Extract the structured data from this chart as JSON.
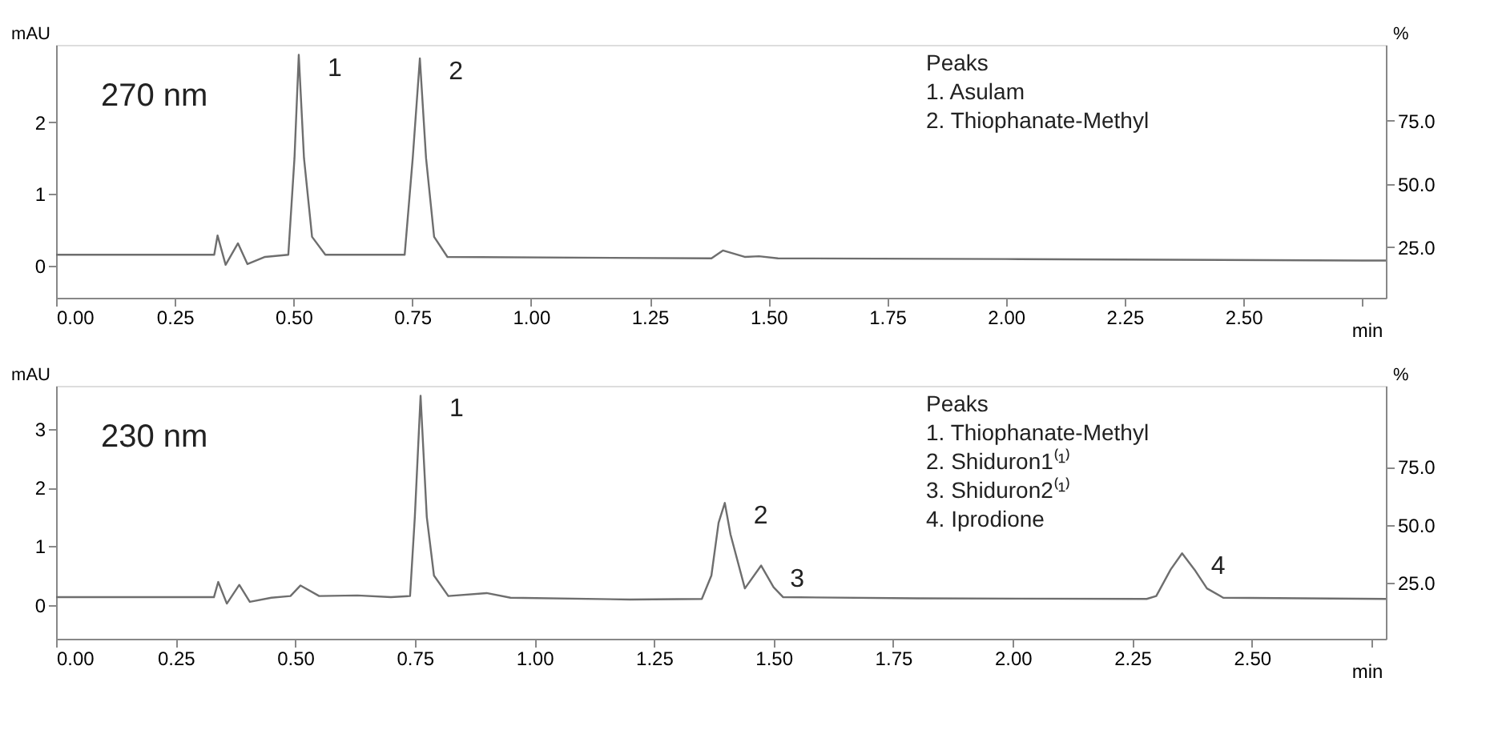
{
  "chart_data": [
    {
      "type": "line",
      "xlabel": "min",
      "ylabel": "mAU",
      "y2label": "%",
      "xlim": [
        0,
        2.8
      ],
      "ylim": [
        -0.45,
        3.08
      ],
      "y2lim": [
        5,
        105
      ],
      "xticks": [
        {
          "value": 0,
          "label": "0.00"
        },
        0.25,
        {
          "value": 0.5,
          "label": "0.50"
        },
        0.75,
        {
          "value": 1,
          "label": "1.00"
        },
        1.25,
        {
          "value": 1.5,
          "label": "1.50"
        },
        1.75,
        {
          "value": 2,
          "label": "2.00"
        },
        2.25,
        {
          "value": 2.5,
          "label": "2.50"
        },
        {
          "value": 2.75,
          "label": null
        }
      ],
      "yticks": [
        0,
        1,
        2
      ],
      "y2ticks": [
        {
          "value": 25,
          "label": "25.0"
        },
        {
          "value": 50,
          "label": "50.0"
        },
        {
          "value": 75,
          "label": "75.0"
        }
      ],
      "x": [
        0,
        0.333,
        0.34,
        0.357,
        0.383,
        0.403,
        0.44,
        0.489,
        0.502,
        0.511,
        0.522,
        0.539,
        0.567,
        0.734,
        0.751,
        0.766,
        0.779,
        0.796,
        0.824,
        1.38,
        1.404,
        1.45,
        1.48,
        1.52,
        2.0,
        2.75,
        2.8
      ],
      "series": [
        {
          "color": "#6e6e6e",
          "values": [
            0.15,
            0.15,
            0.42,
            0.01,
            0.31,
            0.02,
            0.12,
            0.15,
            1.5,
            2.94,
            1.5,
            0.4,
            0.15,
            0.15,
            1.5,
            2.89,
            1.5,
            0.4,
            0.12,
            0.1,
            0.21,
            0.12,
            0.13,
            0.1,
            0.09,
            0.07,
            0.07
          ]
        }
      ],
      "annotations": [
        "270 nm",
        "Peaks",
        "1. Asulam",
        "2. Thiophanate-Methyl",
        {
          "text": "1",
          "x": 0.511,
          "y": 2.94
        },
        {
          "text": "2",
          "x": 0.766,
          "y": 2.89
        }
      ]
    },
    {
      "type": "line",
      "xlabel": "min",
      "ylabel": "mAU",
      "y2label": "%",
      "xlim": [
        0,
        2.78
      ],
      "ylim": [
        -0.58,
        3.74
      ],
      "y2lim": [
        1,
        110
      ],
      "xticks": [
        {
          "value": 0,
          "label": "0.00"
        },
        0.25,
        {
          "value": 0.5,
          "label": "0.50"
        },
        0.75,
        {
          "value": 1,
          "label": "1.00"
        },
        1.25,
        {
          "value": 1.5,
          "label": "1.50"
        },
        1.75,
        {
          "value": 2,
          "label": "2.00"
        },
        2.25,
        {
          "value": 2.5,
          "label": "2.50"
        },
        {
          "value": 2.75,
          "label": null
        }
      ],
      "yticks": [
        0,
        1,
        2,
        3
      ],
      "y2ticks": [
        {
          "value": 25,
          "label": "25.0"
        },
        {
          "value": 50,
          "label": "50.0"
        },
        {
          "value": 75,
          "label": "75.0"
        }
      ],
      "x": [
        0,
        0.33,
        0.339,
        0.357,
        0.383,
        0.405,
        0.45,
        0.49,
        0.511,
        0.55,
        0.63,
        0.7,
        0.74,
        0.75,
        0.762,
        0.775,
        0.79,
        0.82,
        0.9,
        0.95,
        1.2,
        1.35,
        1.37,
        1.385,
        1.398,
        1.41,
        1.44,
        1.474,
        1.5,
        1.52,
        1.8,
        2.28,
        2.3,
        2.33,
        2.354,
        2.38,
        2.406,
        2.44,
        2.78
      ],
      "series": [
        {
          "color": "#6e6e6e",
          "values": [
            0.13,
            0.13,
            0.39,
            0.02,
            0.34,
            0.05,
            0.12,
            0.15,
            0.33,
            0.15,
            0.16,
            0.13,
            0.15,
            1.5,
            3.57,
            1.5,
            0.5,
            0.15,
            0.2,
            0.12,
            0.09,
            0.1,
            0.5,
            1.4,
            1.74,
            1.2,
            0.28,
            0.67,
            0.3,
            0.13,
            0.11,
            0.1,
            0.15,
            0.6,
            0.88,
            0.6,
            0.28,
            0.12,
            0.1
          ]
        }
      ],
      "annotations": [
        "230 nm",
        "Peaks",
        "1. Thiophanate-Methyl",
        "2. Shiduron1⁽¹⁾",
        "3. Shiduron2⁽¹⁾",
        "4. Iprodione",
        {
          "text": "1",
          "x": 0.762,
          "y": 3.57
        },
        {
          "text": "2",
          "x": 1.398,
          "y": 1.74
        },
        {
          "text": "3",
          "x": 1.474,
          "y": 0.67
        },
        {
          "text": "4",
          "x": 2.354,
          "y": 0.88
        }
      ]
    }
  ]
}
